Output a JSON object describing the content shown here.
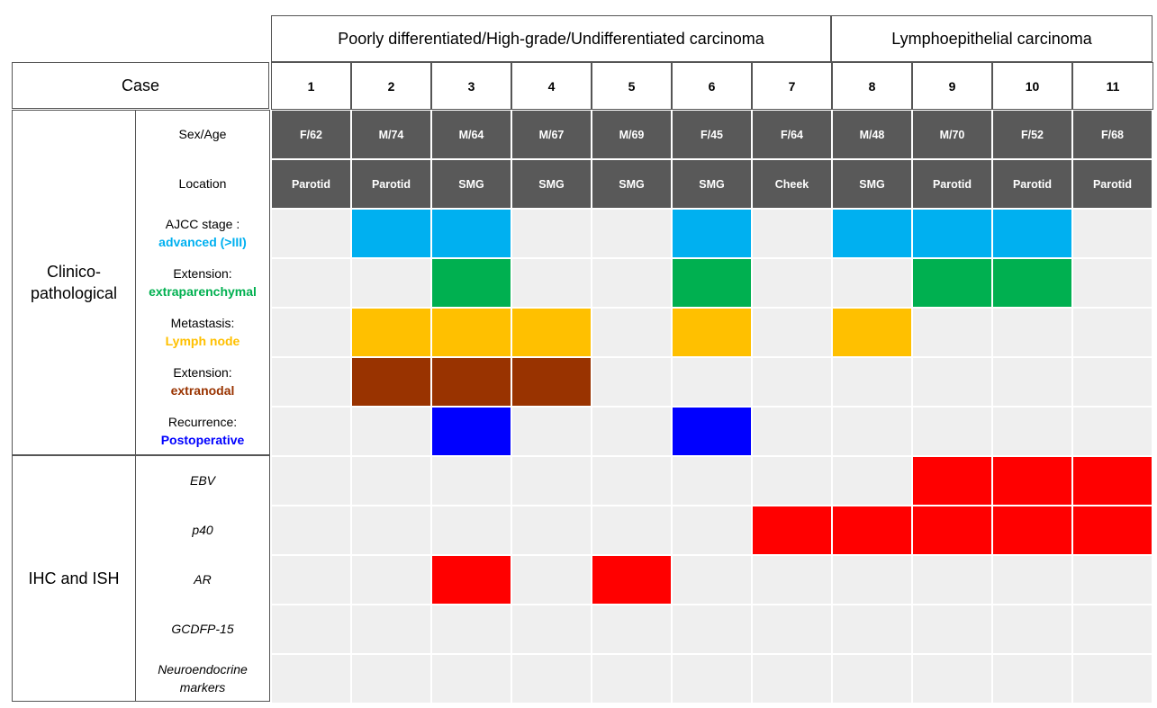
{
  "groups": [
    {
      "label": "Poorly differentiated/High-grade/Undifferentiated carcinoma"
    },
    {
      "label": "Lymphoepithelial carcinoma"
    }
  ],
  "case_header": "Case",
  "cases": [
    "1",
    "2",
    "3",
    "4",
    "5",
    "6",
    "7",
    "8",
    "9",
    "10",
    "11"
  ],
  "sections": [
    {
      "label": "Clinico-pathological"
    },
    {
      "label": "IHC and ISH"
    }
  ],
  "info_rows": [
    {
      "label": "Sex/Age",
      "values": [
        "F/62",
        "M/74",
        "M/64",
        "M/67",
        "M/69",
        "F/45",
        "F/64",
        "M/48",
        "M/70",
        "F/52",
        "F/68"
      ]
    },
    {
      "label": "Location",
      "values": [
        "Parotid",
        "Parotid",
        "SMG",
        "SMG",
        "SMG",
        "SMG",
        "Cheek",
        "SMG",
        "Parotid",
        "Parotid",
        "Parotid"
      ]
    }
  ],
  "feature_rows": [
    {
      "label": "AJCC stage :",
      "sublabel": "advanced (>III)",
      "color": "#00b0f0",
      "present": [
        0,
        1,
        1,
        0,
        0,
        1,
        0,
        1,
        1,
        1,
        0
      ]
    },
    {
      "label": "Extension:",
      "sublabel": "extraparenchymal",
      "color": "#00b050",
      "present": [
        0,
        0,
        1,
        0,
        0,
        1,
        0,
        0,
        1,
        1,
        0
      ]
    },
    {
      "label": "Metastasis:",
      "sublabel": "Lymph node",
      "color": "#ffc000",
      "present": [
        0,
        1,
        1,
        1,
        0,
        1,
        0,
        1,
        0,
        0,
        0
      ]
    },
    {
      "label": "Extension:",
      "sublabel": "extranodal",
      "color": "#993300",
      "present": [
        0,
        1,
        1,
        1,
        0,
        0,
        0,
        0,
        0,
        0,
        0
      ]
    },
    {
      "label": "Recurrence:",
      "sublabel": "Postoperative",
      "color": "#0000ff",
      "present": [
        0,
        0,
        1,
        0,
        0,
        1,
        0,
        0,
        0,
        0,
        0
      ]
    },
    {
      "label": "EBV",
      "color": "#ff0000",
      "present": [
        0,
        0,
        0,
        0,
        0,
        0,
        0,
        0,
        1,
        1,
        1
      ]
    },
    {
      "label": "p40",
      "color": "#ff0000",
      "present": [
        0,
        0,
        0,
        0,
        0,
        0,
        1,
        1,
        1,
        1,
        1
      ]
    },
    {
      "label": "AR",
      "color": "#ff0000",
      "present": [
        0,
        0,
        1,
        0,
        1,
        0,
        0,
        0,
        0,
        0,
        0
      ]
    },
    {
      "label": "GCDFP-15",
      "color": "#ff0000",
      "present": [
        0,
        0,
        0,
        0,
        0,
        0,
        0,
        0,
        0,
        0,
        0
      ]
    },
    {
      "label": "Neuroendocrine markers",
      "color": "#ff0000",
      "present": [
        0,
        0,
        0,
        0,
        0,
        0,
        0,
        0,
        0,
        0,
        0
      ]
    }
  ],
  "empty_color": "#efefef",
  "info_color": "#595959"
}
